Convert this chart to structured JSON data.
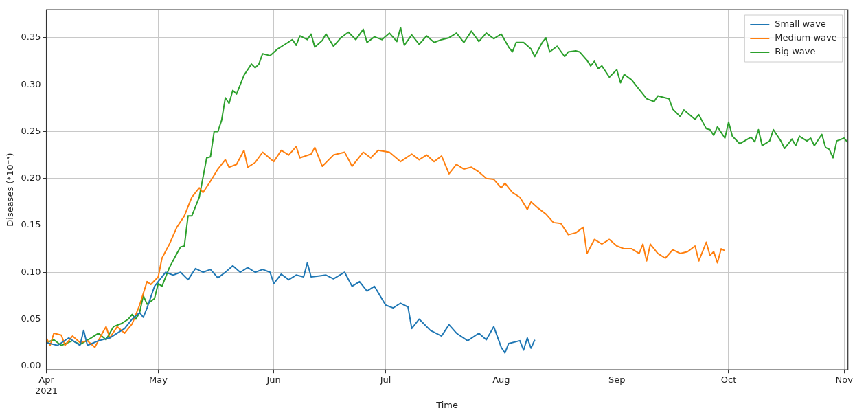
{
  "chart_data": {
    "type": "line",
    "xlabel": "Time",
    "ylabel": "Diseases (*10⁻³)",
    "xlim": [
      "2021-04-01",
      "2021-11-02"
    ],
    "xticks": [
      {
        "value": "2021-04-01",
        "label": "Apr\n2021"
      },
      {
        "value": "2021-05-01",
        "label": "May"
      },
      {
        "value": "2021-06-01",
        "label": "Jun"
      },
      {
        "value": "2021-07-01",
        "label": "Jul"
      },
      {
        "value": "2021-08-01",
        "label": "Aug"
      },
      {
        "value": "2021-09-01",
        "label": "Sep"
      },
      {
        "value": "2021-10-01",
        "label": "Oct"
      },
      {
        "value": "2021-11-01",
        "label": "Nov"
      }
    ],
    "ylim": [
      -0.004,
      0.38
    ],
    "yticks": [
      {
        "value": 0,
        "label": "0.00"
      },
      {
        "value": 0.05,
        "label": "0.05"
      },
      {
        "value": 0.1,
        "label": "0.10"
      },
      {
        "value": 0.15,
        "label": "0.15"
      },
      {
        "value": 0.2,
        "label": "0.20"
      },
      {
        "value": 0.25,
        "label": "0.25"
      },
      {
        "value": 0.3,
        "label": "0.30"
      },
      {
        "value": 0.35,
        "label": "0.35"
      }
    ],
    "grid": true,
    "legend": "top right",
    "marker": "none",
    "line_style": "solid",
    "series": [
      {
        "name": "Small wave",
        "color": "#1f77b4",
        "x": [
          "2021-04-01",
          "2021-04-04",
          "2021-04-07",
          "2021-04-10",
          "2021-04-11",
          "2021-04-12",
          "2021-04-15",
          "2021-04-18",
          "2021-04-20",
          "2021-04-22",
          "2021-04-24",
          "2021-04-26",
          "2021-04-27",
          "2021-04-28",
          "2021-04-30",
          "2021-05-01",
          "2021-05-03",
          "2021-05-05",
          "2021-05-07",
          "2021-05-09",
          "2021-05-11",
          "2021-05-13",
          "2021-05-15",
          "2021-05-17",
          "2021-05-19",
          "2021-05-21",
          "2021-05-23",
          "2021-05-25",
          "2021-05-27",
          "2021-05-29",
          "2021-05-31",
          "2021-06-01",
          "2021-06-03",
          "2021-06-05",
          "2021-06-07",
          "2021-06-09",
          "2021-06-10",
          "2021-06-11",
          "2021-06-13",
          "2021-06-15",
          "2021-06-17",
          "2021-06-20",
          "2021-06-22",
          "2021-06-24",
          "2021-06-26",
          "2021-06-28",
          "2021-07-01",
          "2021-07-03",
          "2021-07-05",
          "2021-07-07",
          "2021-07-08",
          "2021-07-10",
          "2021-07-13",
          "2021-07-16",
          "2021-07-18",
          "2021-07-20",
          "2021-07-23",
          "2021-07-26",
          "2021-07-28",
          "2021-07-30",
          "2021-08-01",
          "2021-08-02",
          "2021-08-03",
          "2021-08-06",
          "2021-08-07",
          "2021-08-08",
          "2021-08-09",
          "2021-08-10"
        ],
        "values": [
          0.025,
          0.022,
          0.03,
          0.022,
          0.038,
          0.022,
          0.027,
          0.03,
          0.035,
          0.04,
          0.05,
          0.057,
          0.052,
          0.062,
          0.085,
          0.09,
          0.1,
          0.097,
          0.1,
          0.092,
          0.104,
          0.1,
          0.103,
          0.094,
          0.1,
          0.107,
          0.1,
          0.105,
          0.1,
          0.103,
          0.1,
          0.088,
          0.098,
          0.092,
          0.097,
          0.095,
          0.11,
          0.095,
          0.096,
          0.097,
          0.093,
          0.1,
          0.085,
          0.09,
          0.08,
          0.085,
          0.065,
          0.062,
          0.067,
          0.063,
          0.04,
          0.05,
          0.038,
          0.032,
          0.044,
          0.035,
          0.027,
          0.035,
          0.028,
          0.042,
          0.02,
          0.014,
          0.024,
          0.027,
          0.017,
          0.03,
          0.019,
          0.028
        ]
      },
      {
        "name": "Medium wave",
        "color": "#ff7f0e",
        "x": [
          "2021-04-01",
          "2021-04-02",
          "2021-04-03",
          "2021-04-05",
          "2021-04-06",
          "2021-04-08",
          "2021-04-10",
          "2021-04-12",
          "2021-04-14",
          "2021-04-16",
          "2021-04-17",
          "2021-04-18",
          "2021-04-20",
          "2021-04-22",
          "2021-04-24",
          "2021-04-26",
          "2021-04-28",
          "2021-04-29",
          "2021-05-01",
          "2021-05-02",
          "2021-05-04",
          "2021-05-06",
          "2021-05-08",
          "2021-05-10",
          "2021-05-12",
          "2021-05-13",
          "2021-05-15",
          "2021-05-17",
          "2021-05-19",
          "2021-05-20",
          "2021-05-22",
          "2021-05-24",
          "2021-05-25",
          "2021-05-27",
          "2021-05-29",
          "2021-06-01",
          "2021-06-03",
          "2021-06-05",
          "2021-06-07",
          "2021-06-08",
          "2021-06-11",
          "2021-06-12",
          "2021-06-14",
          "2021-06-17",
          "2021-06-20",
          "2021-06-22",
          "2021-06-25",
          "2021-06-27",
          "2021-06-29",
          "2021-07-02",
          "2021-07-05",
          "2021-07-08",
          "2021-07-10",
          "2021-07-12",
          "2021-07-14",
          "2021-07-16",
          "2021-07-18",
          "2021-07-20",
          "2021-07-22",
          "2021-07-24",
          "2021-07-26",
          "2021-07-28",
          "2021-07-30",
          "2021-08-01",
          "2021-08-02",
          "2021-08-04",
          "2021-08-06",
          "2021-08-08",
          "2021-08-09",
          "2021-08-11",
          "2021-08-13",
          "2021-08-15",
          "2021-08-17",
          "2021-08-19",
          "2021-08-21",
          "2021-08-23",
          "2021-08-24",
          "2021-08-26",
          "2021-08-28",
          "2021-08-30",
          "2021-09-01",
          "2021-09-03",
          "2021-09-05",
          "2021-09-07",
          "2021-09-08",
          "2021-09-09",
          "2021-09-10",
          "2021-09-12",
          "2021-09-14",
          "2021-09-16",
          "2021-09-18",
          "2021-09-20",
          "2021-09-22",
          "2021-09-23",
          "2021-09-25",
          "2021-09-26",
          "2021-09-27",
          "2021-09-28",
          "2021-09-29",
          "2021-09-30"
        ],
        "values": [
          0.03,
          0.022,
          0.035,
          0.033,
          0.022,
          0.032,
          0.025,
          0.027,
          0.02,
          0.035,
          0.042,
          0.03,
          0.042,
          0.035,
          0.045,
          0.065,
          0.09,
          0.087,
          0.095,
          0.115,
          0.13,
          0.148,
          0.16,
          0.18,
          0.19,
          0.185,
          0.197,
          0.21,
          0.22,
          0.212,
          0.215,
          0.23,
          0.212,
          0.217,
          0.228,
          0.218,
          0.23,
          0.225,
          0.234,
          0.222,
          0.226,
          0.233,
          0.213,
          0.225,
          0.228,
          0.213,
          0.228,
          0.222,
          0.23,
          0.228,
          0.218,
          0.226,
          0.22,
          0.225,
          0.218,
          0.224,
          0.205,
          0.215,
          0.21,
          0.212,
          0.207,
          0.2,
          0.199,
          0.19,
          0.195,
          0.185,
          0.18,
          0.167,
          0.175,
          0.168,
          0.162,
          0.153,
          0.152,
          0.14,
          0.142,
          0.148,
          0.12,
          0.135,
          0.13,
          0.135,
          0.128,
          0.125,
          0.125,
          0.12,
          0.13,
          0.112,
          0.13,
          0.12,
          0.115,
          0.124,
          0.12,
          0.122,
          0.128,
          0.112,
          0.132,
          0.118,
          0.122,
          0.11,
          0.125,
          0.123
        ]
      },
      {
        "name": "Big wave",
        "color": "#2ca02c",
        "x": [
          "2021-04-01",
          "2021-04-03",
          "2021-04-05",
          "2021-04-08",
          "2021-04-10",
          "2021-04-13",
          "2021-04-15",
          "2021-04-17",
          "2021-04-19",
          "2021-04-21",
          "2021-04-23",
          "2021-04-24",
          "2021-04-25",
          "2021-04-26",
          "2021-04-27",
          "2021-04-28",
          "2021-04-30",
          "2021-05-01",
          "2021-05-02",
          "2021-05-04",
          "2021-05-06",
          "2021-05-07",
          "2021-05-08",
          "2021-05-09",
          "2021-05-10",
          "2021-05-12",
          "2021-05-14",
          "2021-05-15",
          "2021-05-16",
          "2021-05-17",
          "2021-05-18",
          "2021-05-19",
          "2021-05-20",
          "2021-05-21",
          "2021-05-22",
          "2021-05-24",
          "2021-05-26",
          "2021-05-27",
          "2021-05-28",
          "2021-05-29",
          "2021-05-31",
          "2021-06-02",
          "2021-06-04",
          "2021-06-06",
          "2021-06-07",
          "2021-06-08",
          "2021-06-10",
          "2021-06-11",
          "2021-06-12",
          "2021-06-14",
          "2021-06-15",
          "2021-06-17",
          "2021-06-19",
          "2021-06-21",
          "2021-06-23",
          "2021-06-25",
          "2021-06-26",
          "2021-06-28",
          "2021-06-30",
          "2021-07-02",
          "2021-07-04",
          "2021-07-05",
          "2021-07-06",
          "2021-07-08",
          "2021-07-10",
          "2021-07-12",
          "2021-07-14",
          "2021-07-16",
          "2021-07-18",
          "2021-07-20",
          "2021-07-22",
          "2021-07-24",
          "2021-07-26",
          "2021-07-28",
          "2021-07-30",
          "2021-08-01",
          "2021-08-03",
          "2021-08-04",
          "2021-08-05",
          "2021-08-07",
          "2021-08-09",
          "2021-08-10",
          "2021-08-12",
          "2021-08-13",
          "2021-08-14",
          "2021-08-16",
          "2021-08-18",
          "2021-08-19",
          "2021-08-21",
          "2021-08-22",
          "2021-08-24",
          "2021-08-25",
          "2021-08-26",
          "2021-08-27",
          "2021-08-28",
          "2021-08-30",
          "2021-09-01",
          "2021-09-02",
          "2021-09-03",
          "2021-09-05",
          "2021-09-07",
          "2021-09-09",
          "2021-09-11",
          "2021-09-12",
          "2021-09-15",
          "2021-09-16",
          "2021-09-18",
          "2021-09-19",
          "2021-09-22",
          "2021-09-23",
          "2021-09-25",
          "2021-09-26",
          "2021-09-27",
          "2021-09-28",
          "2021-09-30",
          "2021-10-01",
          "2021-10-02",
          "2021-10-04",
          "2021-10-07",
          "2021-10-08",
          "2021-10-09",
          "2021-10-10",
          "2021-10-12",
          "2021-10-13",
          "2021-10-15",
          "2021-10-16",
          "2021-10-18",
          "2021-10-19",
          "2021-10-20",
          "2021-10-22",
          "2021-10-23",
          "2021-10-24",
          "2021-10-26",
          "2021-10-27",
          "2021-10-28",
          "2021-10-29",
          "2021-10-30",
          "2021-11-01",
          "2021-11-02"
        ],
        "values": [
          0.025,
          0.028,
          0.022,
          0.027,
          0.023,
          0.03,
          0.035,
          0.028,
          0.042,
          0.045,
          0.05,
          0.055,
          0.05,
          0.057,
          0.075,
          0.066,
          0.072,
          0.088,
          0.085,
          0.105,
          0.12,
          0.127,
          0.128,
          0.16,
          0.16,
          0.18,
          0.222,
          0.223,
          0.25,
          0.25,
          0.262,
          0.286,
          0.28,
          0.294,
          0.29,
          0.31,
          0.322,
          0.318,
          0.322,
          0.333,
          0.331,
          0.338,
          0.343,
          0.348,
          0.342,
          0.352,
          0.348,
          0.354,
          0.34,
          0.347,
          0.354,
          0.341,
          0.35,
          0.356,
          0.348,
          0.359,
          0.345,
          0.351,
          0.348,
          0.355,
          0.346,
          0.361,
          0.342,
          0.353,
          0.343,
          0.352,
          0.345,
          0.348,
          0.35,
          0.355,
          0.345,
          0.357,
          0.346,
          0.355,
          0.349,
          0.354,
          0.34,
          0.335,
          0.345,
          0.345,
          0.338,
          0.33,
          0.345,
          0.35,
          0.335,
          0.341,
          0.33,
          0.335,
          0.336,
          0.335,
          0.326,
          0.32,
          0.325,
          0.317,
          0.32,
          0.308,
          0.316,
          0.302,
          0.311,
          0.305,
          0.295,
          0.285,
          0.282,
          0.288,
          0.285,
          0.274,
          0.266,
          0.273,
          0.263,
          0.268,
          0.253,
          0.252,
          0.246,
          0.255,
          0.243,
          0.26,
          0.245,
          0.237,
          0.244,
          0.239,
          0.252,
          0.235,
          0.24,
          0.252,
          0.24,
          0.232,
          0.242,
          0.235,
          0.245,
          0.24,
          0.243,
          0.235,
          0.247,
          0.233,
          0.231,
          0.222,
          0.24,
          0.243,
          0.238
        ]
      }
    ]
  }
}
